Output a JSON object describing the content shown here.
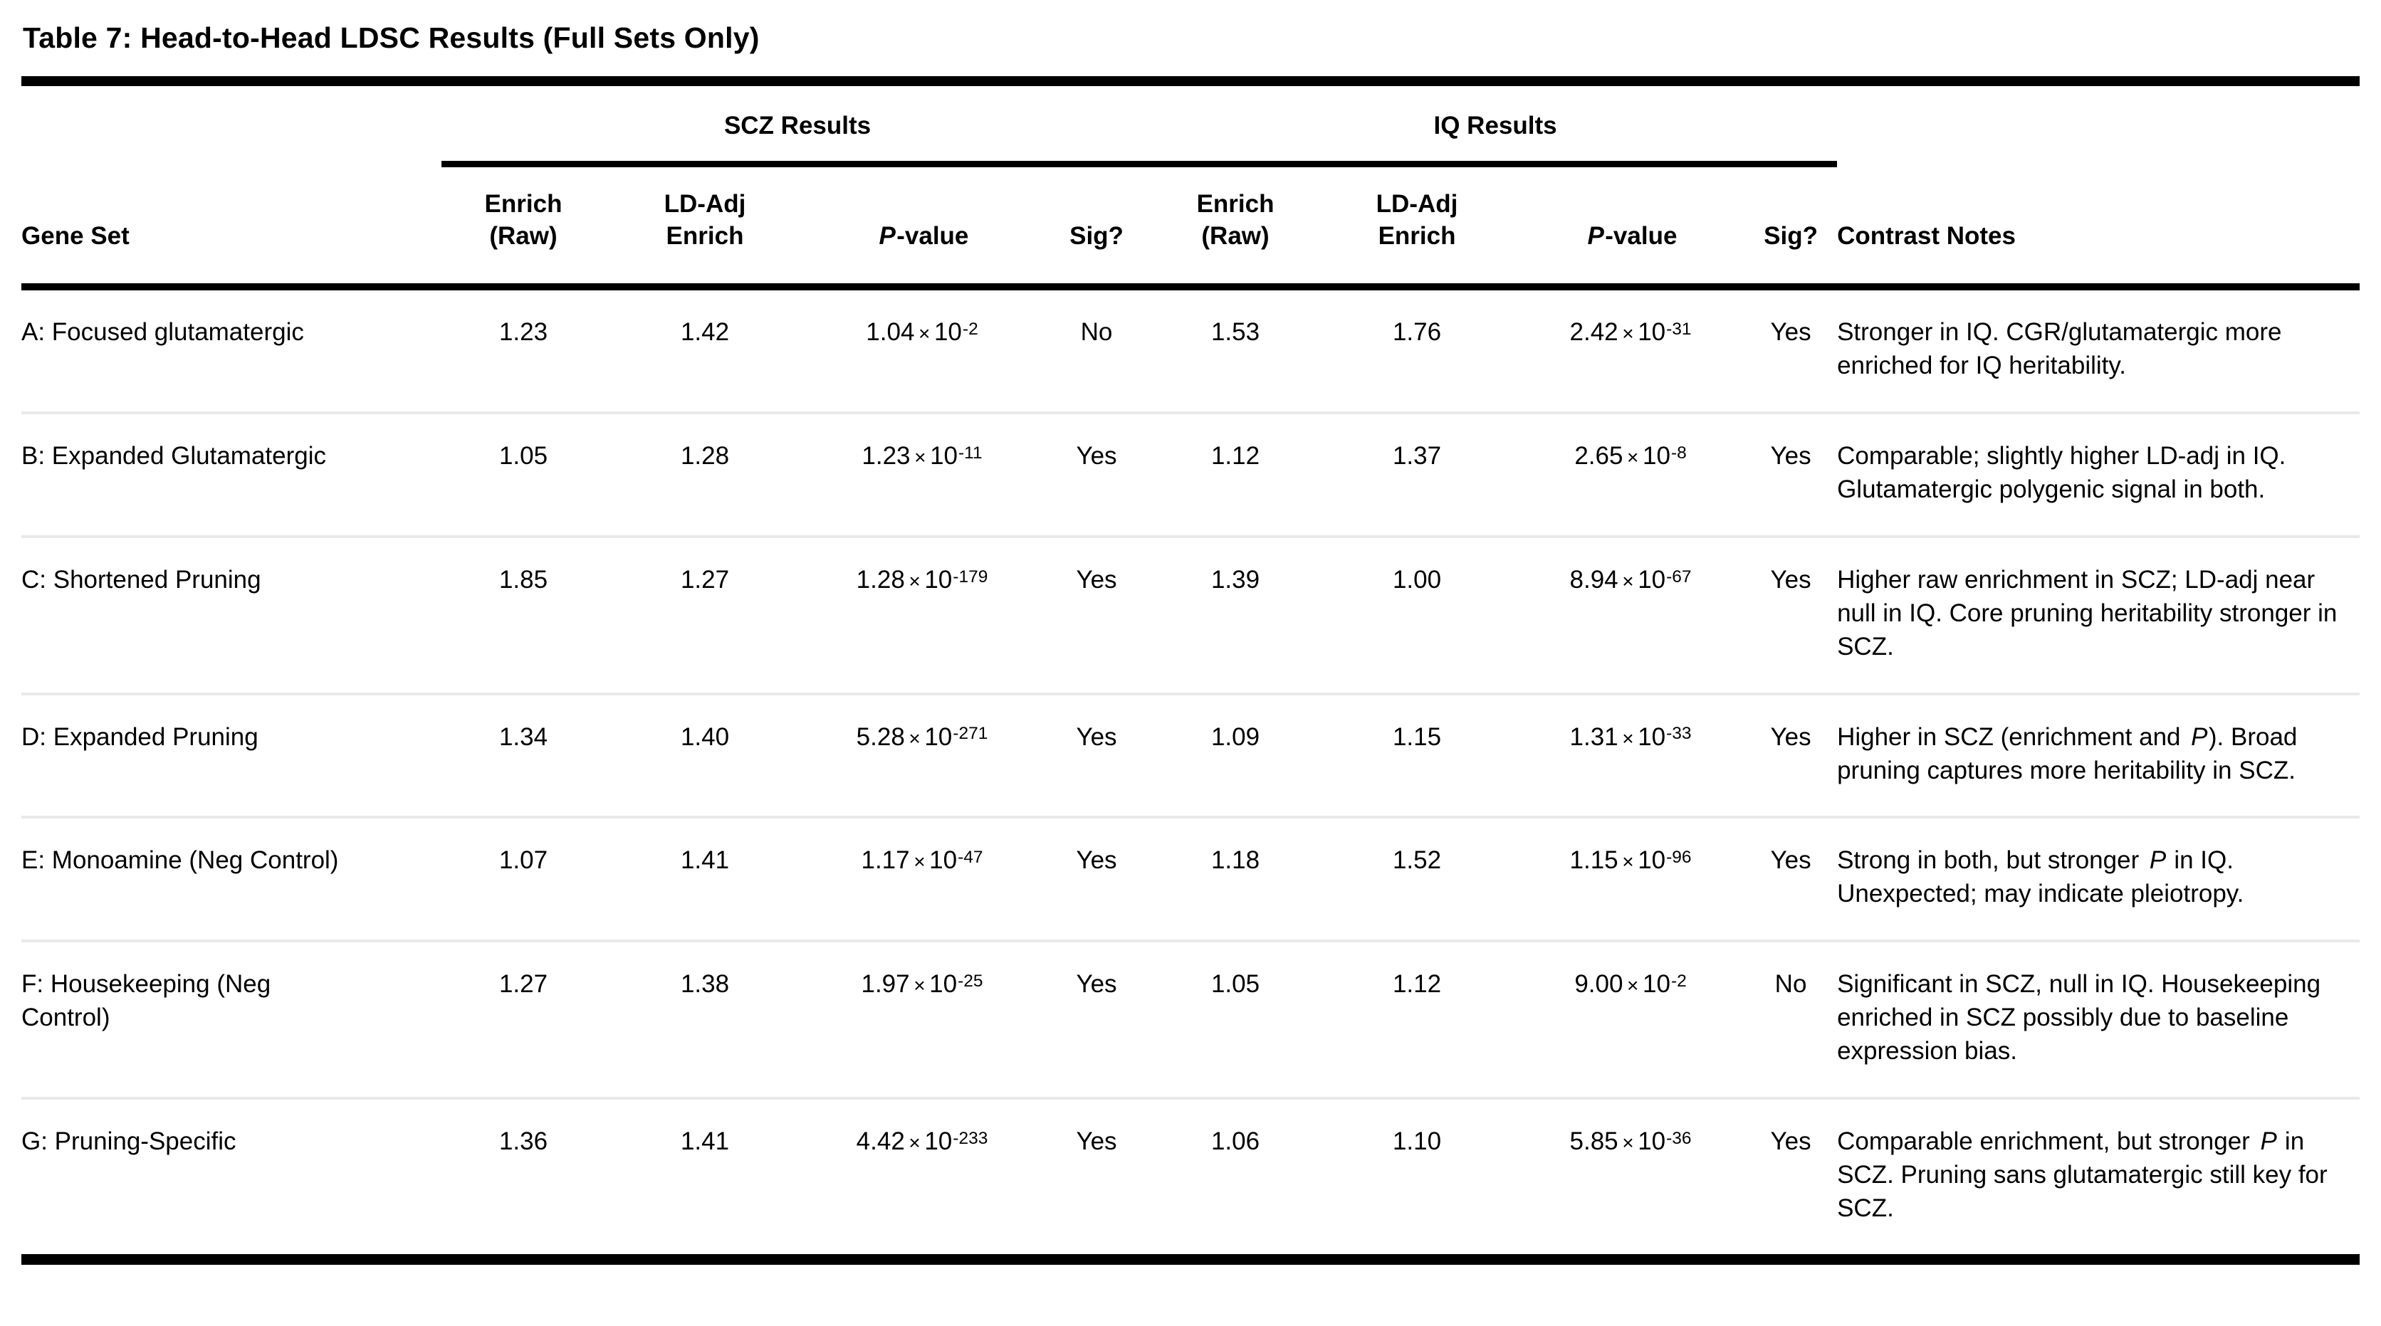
{
  "title": "Table 7: Head-to-Head LDSC Results (Full Sets Only)",
  "table": {
    "group_headers": {
      "scz": "SCZ Results",
      "iq": "IQ Results"
    },
    "columns": {
      "gene_set": "Gene Set",
      "enrich_raw": "Enrich\n(Raw)",
      "ld_adj": "LD-Adj\nEnrich",
      "p_value": "*P*-value",
      "sig": "Sig?",
      "notes": "Contrast Notes"
    },
    "rows": [
      {
        "gene_set": "A: Focused glutamatergic",
        "scz": {
          "enrich_raw": "1.23",
          "ld_adj": "1.42",
          "p": {
            "mantissa": "1.04",
            "exponent": "-2"
          },
          "sig": "No"
        },
        "iq": {
          "enrich_raw": "1.53",
          "ld_adj": "1.76",
          "p": {
            "mantissa": "2.42",
            "exponent": "-31"
          },
          "sig": "Yes"
        },
        "notes": "Stronger in IQ. CGR/glutamatergic more enriched for IQ heritability."
      },
      {
        "gene_set": "B: Expanded Glutamatergic",
        "scz": {
          "enrich_raw": "1.05",
          "ld_adj": "1.28",
          "p": {
            "mantissa": "1.23",
            "exponent": "-11"
          },
          "sig": "Yes"
        },
        "iq": {
          "enrich_raw": "1.12",
          "ld_adj": "1.37",
          "p": {
            "mantissa": "2.65",
            "exponent": "-8"
          },
          "sig": "Yes"
        },
        "notes": "Comparable; slightly higher LD-adj in IQ. Glutamatergic polygenic signal in both."
      },
      {
        "gene_set": "C: Shortened Pruning",
        "scz": {
          "enrich_raw": "1.85",
          "ld_adj": "1.27",
          "p": {
            "mantissa": "1.28",
            "exponent": "-179"
          },
          "sig": "Yes"
        },
        "iq": {
          "enrich_raw": "1.39",
          "ld_adj": "1.00",
          "p": {
            "mantissa": "8.94",
            "exponent": "-67"
          },
          "sig": "Yes"
        },
        "notes": "Higher raw enrichment in SCZ; LD-adj near null in IQ. Core pruning heritability stronger in SCZ."
      },
      {
        "gene_set": "D: Expanded Pruning",
        "scz": {
          "enrich_raw": "1.34",
          "ld_adj": "1.40",
          "p": {
            "mantissa": "5.28",
            "exponent": "-271"
          },
          "sig": "Yes"
        },
        "iq": {
          "enrich_raw": "1.09",
          "ld_adj": "1.15",
          "p": {
            "mantissa": "1.31",
            "exponent": "-33"
          },
          "sig": "Yes"
        },
        "notes": "Higher in SCZ (enrichment and *P*). Broad pruning captures more heritability in SCZ."
      },
      {
        "gene_set": "E: Monoamine (Neg Control)",
        "scz": {
          "enrich_raw": "1.07",
          "ld_adj": "1.41",
          "p": {
            "mantissa": "1.17",
            "exponent": "-47"
          },
          "sig": "Yes"
        },
        "iq": {
          "enrich_raw": "1.18",
          "ld_adj": "1.52",
          "p": {
            "mantissa": "1.15",
            "exponent": "-96"
          },
          "sig": "Yes"
        },
        "notes": "Strong in both, but stronger *P* in IQ. Unexpected; may indicate pleiotropy."
      },
      {
        "gene_set": "F: Housekeeping (Neg Control)",
        "scz": {
          "enrich_raw": "1.27",
          "ld_adj": "1.38",
          "p": {
            "mantissa": "1.97",
            "exponent": "-25"
          },
          "sig": "Yes"
        },
        "iq": {
          "enrich_raw": "1.05",
          "ld_adj": "1.12",
          "p": {
            "mantissa": "9.00",
            "exponent": "-2"
          },
          "sig": "No"
        },
        "notes": "Significant in SCZ, null in IQ. Housekeeping enriched in SCZ possibly due to baseline expression bias."
      },
      {
        "gene_set": "G: Pruning-Specific",
        "scz": {
          "enrich_raw": "1.36",
          "ld_adj": "1.41",
          "p": {
            "mantissa": "4.42",
            "exponent": "-233"
          },
          "sig": "Yes"
        },
        "iq": {
          "enrich_raw": "1.06",
          "ld_adj": "1.10",
          "p": {
            "mantissa": "5.85",
            "exponent": "-36"
          },
          "sig": "Yes"
        },
        "notes": "Comparable enrichment, but stronger *P* in SCZ. Pruning sans glutamatergic still key for SCZ."
      }
    ]
  }
}
